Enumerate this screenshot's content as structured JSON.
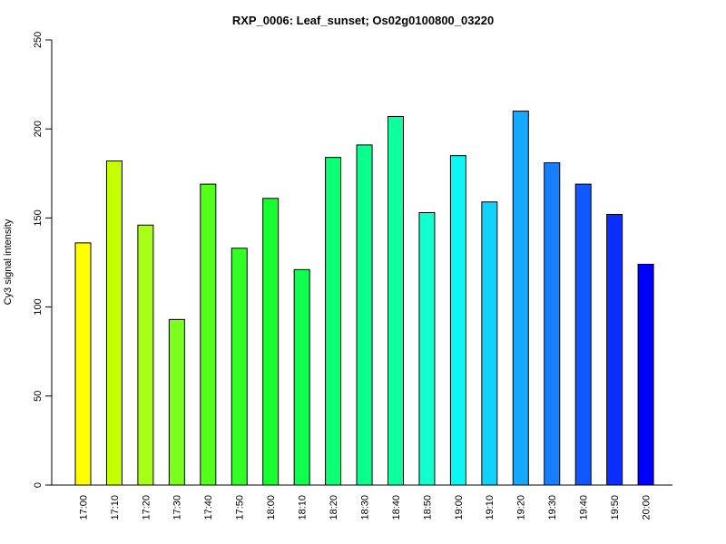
{
  "chart_data": {
    "type": "bar",
    "title": "RXP_0006: Leaf_sunset; Os02g0100800_03220",
    "xlabel": "",
    "ylabel": "Cy3 signal intensity",
    "ylim": [
      0,
      250
    ],
    "yticks": [
      0,
      50,
      100,
      150,
      200,
      250
    ],
    "grid": false,
    "categories": [
      "17:00",
      "17:10",
      "17:20",
      "17:30",
      "17:40",
      "17:50",
      "18:00",
      "18:10",
      "18:20",
      "18:30",
      "18:40",
      "18:50",
      "19:00",
      "19:10",
      "19:20",
      "19:30",
      "19:40",
      "19:50",
      "20:00"
    ],
    "values": [
      136,
      182,
      146,
      93,
      169,
      133,
      161,
      121,
      184,
      191,
      207,
      153,
      185,
      159,
      210,
      181,
      169,
      152,
      124
    ],
    "colors": [
      "#ffff00",
      "#c6ff00",
      "#a8ff17",
      "#7cff1e",
      "#55ff1c",
      "#33ff27",
      "#17ff2f",
      "#10ff4f",
      "#0dff73",
      "#0aff8c",
      "#0eff9e",
      "#12ffcf",
      "#0cf6f4",
      "#10d2fb",
      "#16a8ff",
      "#167eff",
      "#1057ff",
      "#0a2fff",
      "#0000ff"
    ]
  }
}
